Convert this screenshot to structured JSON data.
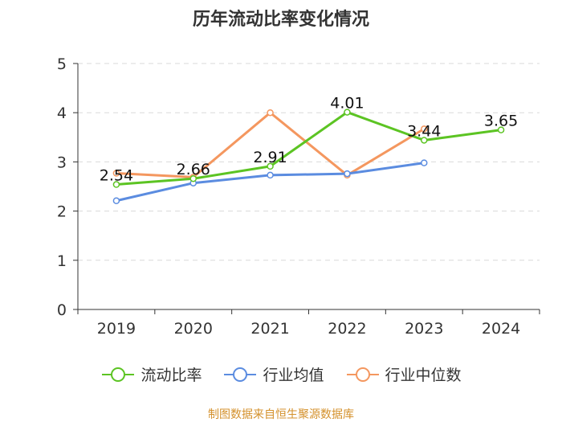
{
  "chart_data": {
    "type": "line",
    "title": "历年流动比率变化情况",
    "categories": [
      "2019",
      "2020",
      "2021",
      "2022",
      "2023",
      "2024"
    ],
    "ylim": [
      0,
      5
    ],
    "yticks": [
      0,
      1,
      2,
      3,
      4,
      5
    ],
    "series": [
      {
        "name": "流动比率",
        "color": "#5cc423",
        "values": [
          2.54,
          2.66,
          2.91,
          4.01,
          3.44,
          3.65
        ],
        "labels": [
          "2.54",
          "2.66",
          "2.91",
          "4.01",
          "3.44",
          "3.65"
        ],
        "show_labels": true
      },
      {
        "name": "行业均值",
        "color": "#5b8ce0",
        "values": [
          2.21,
          2.57,
          2.73,
          2.76,
          2.98,
          null
        ],
        "show_labels": false
      },
      {
        "name": "行业中位数",
        "color": "#f4975f",
        "values": [
          2.77,
          2.69,
          4.0,
          2.73,
          3.67,
          null
        ],
        "show_labels": false
      }
    ],
    "source": "制图数据来自恒生聚源数据库"
  }
}
